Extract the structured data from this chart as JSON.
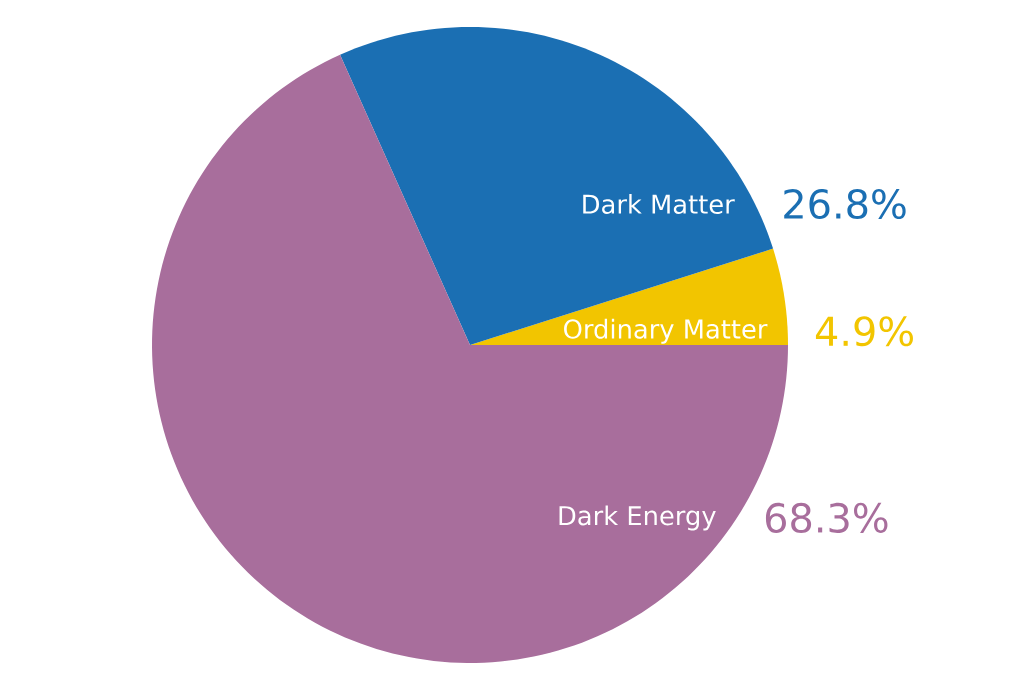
{
  "chart_data": {
    "type": "pie",
    "categories": [
      "Ordinary Matter",
      "Dark Matter",
      "Dark Energy"
    ],
    "values": [
      4.9,
      26.8,
      68.3
    ],
    "colors": [
      "#f2c500",
      "#1b6fb3",
      "#a86e9c"
    ],
    "value_labels": [
      "4.9%",
      "26.8%",
      "68.3%"
    ]
  }
}
